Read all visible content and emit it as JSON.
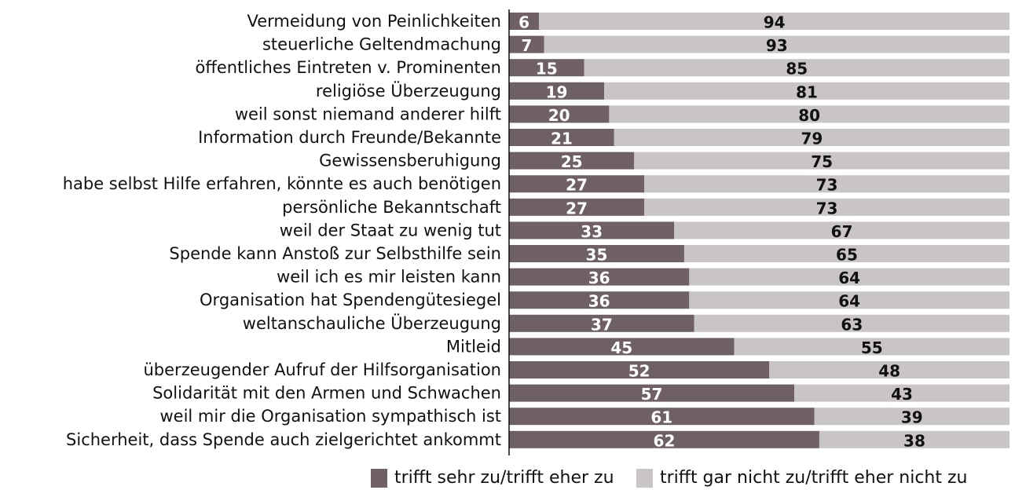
{
  "chart_data": {
    "type": "stacked-barh",
    "categories": [
      "Vermeidung von Peinlichkeiten",
      "steuerliche Geltendmachung",
      "öffentliches Eintreten v. Prominenten",
      "religiöse Überzeugung",
      "weil sonst niemand anderer hilft",
      "Information durch Freunde/Bekannte",
      "Gewissensberuhigung",
      "habe selbst Hilfe erfahren, könnte es auch benötigen",
      "persönliche Bekanntschaft",
      "weil der Staat zu wenig tut",
      "Spende kann Anstoß zur Selbsthilfe sein",
      "weil ich es mir leisten kann",
      "Organisation hat Spendengütesiegel",
      "weltanschauliche Überzeugung",
      "Mitleid",
      "überzeugender Aufruf der Hilfsorganisation",
      "Solidarität mit den Armen und Schwachen",
      "weil mir die Organisation sympathisch ist",
      "Sicherheit, dass Spende auch zielgerichtet ankommt"
    ],
    "series": [
      {
        "name": "trifft sehr zu/trifft eher zu",
        "color": "#6f6068",
        "values": [
          6,
          7,
          15,
          19,
          20,
          21,
          25,
          27,
          27,
          33,
          35,
          36,
          36,
          37,
          45,
          52,
          57,
          61,
          62
        ]
      },
      {
        "name": "trifft gar nicht zu/trifft eher nicht zu",
        "color": "#c9c4c8",
        "values": [
          94,
          93,
          85,
          81,
          80,
          79,
          75,
          73,
          73,
          67,
          65,
          64,
          64,
          63,
          55,
          48,
          43,
          39,
          38
        ]
      }
    ],
    "xlim": [
      0,
      100
    ]
  }
}
